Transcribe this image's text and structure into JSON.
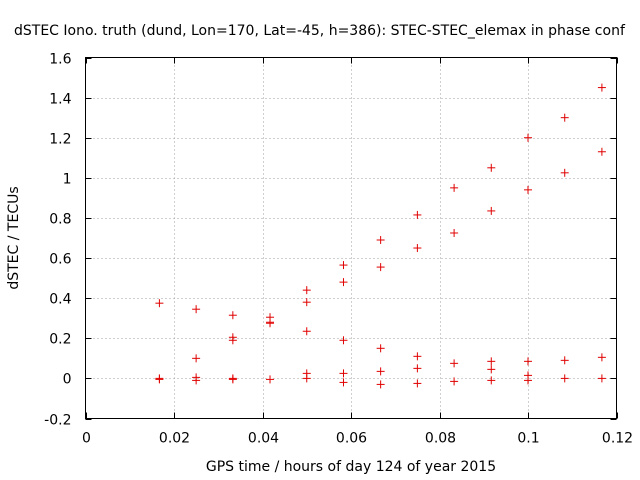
{
  "chart_data": {
    "type": "scatter",
    "title": "dSTEC Iono. truth (dund, Lon=170, Lat=-45, h=386): STEC-STEC_elemax in phase conf",
    "xlabel": "GPS time / hours of day 124 of year 2015",
    "ylabel": "dSTEC  / TECUs",
    "xlim": [
      0,
      0.12
    ],
    "ylim": [
      -0.2,
      1.6
    ],
    "xticks": [
      0,
      0.02,
      0.04,
      0.06,
      0.08,
      0.1,
      0.12
    ],
    "xtick_labels": [
      "0",
      "0.02",
      "0.04",
      "0.06",
      "0.08",
      "0.1",
      "0.12"
    ],
    "yticks": [
      -0.2,
      0,
      0.2,
      0.4,
      0.6,
      0.8,
      1.0,
      1.2,
      1.4,
      1.6
    ],
    "ytick_labels": [
      "-0.2",
      "0",
      "0.2",
      "0.4",
      "0.6",
      "0.8",
      "1",
      "1.2",
      "1.4",
      "1.6"
    ],
    "grid": true,
    "marker": "+",
    "color": "#e00000",
    "series": [
      {
        "name": "dSTEC",
        "points": [
          [
            0.0167,
            0.375
          ],
          [
            0.0167,
            0.0
          ],
          [
            0.0167,
            -0.005
          ],
          [
            0.025,
            0.345
          ],
          [
            0.025,
            0.1
          ],
          [
            0.025,
            0.005
          ],
          [
            0.025,
            -0.01
          ],
          [
            0.0333,
            0.315
          ],
          [
            0.0333,
            0.205
          ],
          [
            0.0333,
            0.19
          ],
          [
            0.0333,
            0.0
          ],
          [
            0.0333,
            -0.005
          ],
          [
            0.0417,
            0.305
          ],
          [
            0.0417,
            0.28
          ],
          [
            0.0417,
            0.275
          ],
          [
            0.0417,
            -0.005
          ],
          [
            0.05,
            0.44
          ],
          [
            0.05,
            0.38
          ],
          [
            0.05,
            0.235
          ],
          [
            0.05,
            0.025
          ],
          [
            0.05,
            0.0
          ],
          [
            0.0583,
            0.565
          ],
          [
            0.0583,
            0.48
          ],
          [
            0.0583,
            0.19
          ],
          [
            0.0583,
            0.025
          ],
          [
            0.0583,
            -0.02
          ],
          [
            0.0667,
            0.69
          ],
          [
            0.0667,
            0.555
          ],
          [
            0.0667,
            0.15
          ],
          [
            0.0667,
            0.035
          ],
          [
            0.0667,
            -0.03
          ],
          [
            0.075,
            0.815
          ],
          [
            0.075,
            0.65
          ],
          [
            0.075,
            0.11
          ],
          [
            0.075,
            0.05
          ],
          [
            0.075,
            -0.025
          ],
          [
            0.0833,
            0.95
          ],
          [
            0.0833,
            0.725
          ],
          [
            0.0833,
            0.075
          ],
          [
            0.0833,
            -0.015
          ],
          [
            0.0917,
            1.05
          ],
          [
            0.0917,
            0.835
          ],
          [
            0.0917,
            0.085
          ],
          [
            0.0917,
            0.045
          ],
          [
            0.0917,
            -0.01
          ],
          [
            0.1,
            1.2
          ],
          [
            0.1,
            0.94
          ],
          [
            0.1,
            0.085
          ],
          [
            0.1,
            0.015
          ],
          [
            0.1,
            -0.01
          ],
          [
            0.1083,
            1.3
          ],
          [
            0.1083,
            1.025
          ],
          [
            0.1083,
            0.09
          ],
          [
            0.1083,
            0.0
          ],
          [
            0.1167,
            1.45
          ],
          [
            0.1167,
            1.13
          ],
          [
            0.1167,
            0.105
          ],
          [
            0.1167,
            0.0
          ]
        ]
      }
    ]
  }
}
